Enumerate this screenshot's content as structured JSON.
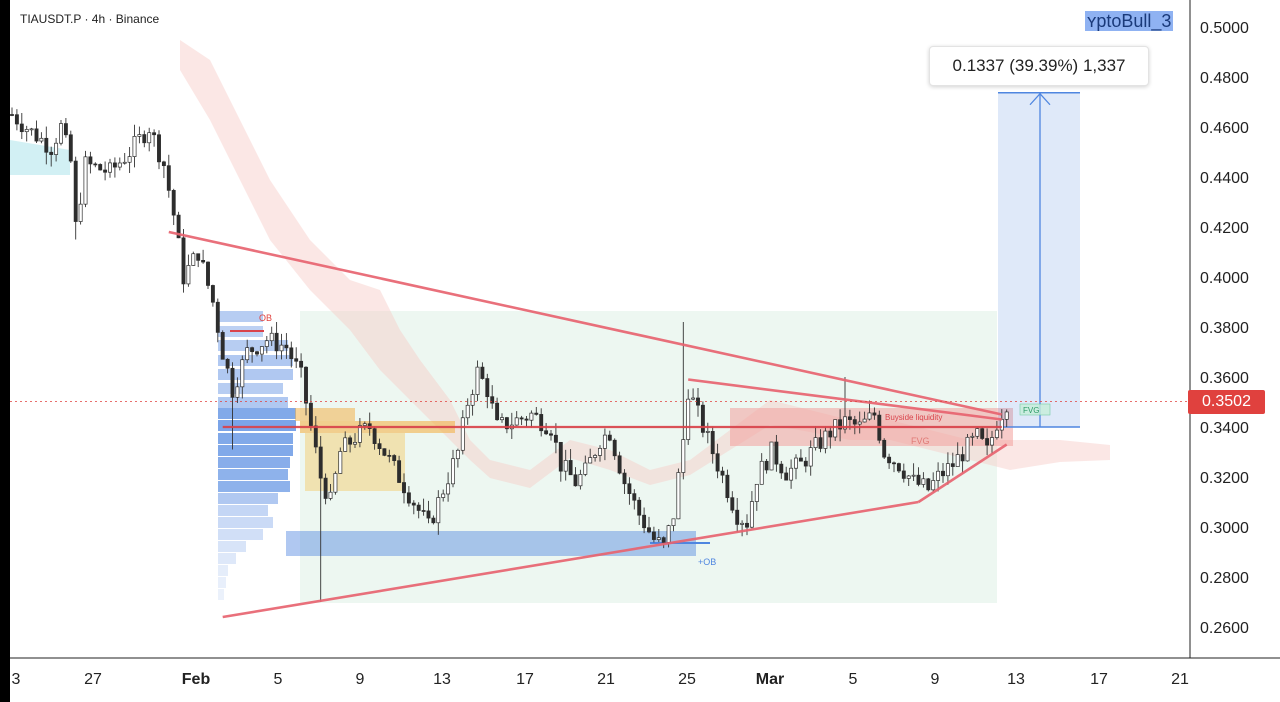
{
  "symbol": "TIAUSDT.P · 4h · Binance",
  "watermark": "ʏptoBull_3",
  "measure_label": "0.1337 (39.39%) 1,337",
  "current_price": "0.3502",
  "colors": {
    "up": "#26a69a",
    "down": "#ef5350",
    "trendline": "#e86470",
    "horizontal": "#d9434b",
    "projection": "#4f86e0",
    "zone_green": "#dff0e6",
    "zone_red": "#f6c9c6",
    "ob": "#4f86e0"
  },
  "annotations": {
    "ob_top": "OB",
    "ob_bottom": "+OB",
    "fvg": "FVG",
    "fvg_small": "FVG",
    "buyside": "Buyside liquidity"
  },
  "chart_data": {
    "type": "candlestick",
    "title": "TIAUSDT.P · 4h · Binance",
    "xlabel": "",
    "ylabel": "",
    "ylim": [
      0.25,
      0.51
    ],
    "grid": false,
    "y_ticks": [
      "0.5000",
      "0.4800",
      "0.4600",
      "0.4400",
      "0.4200",
      "0.4000",
      "0.3800",
      "0.3600",
      "0.3400",
      "0.3200",
      "0.3000",
      "0.2800",
      "0.2600"
    ],
    "x_ticks": [
      "3",
      "27",
      "Feb",
      "5",
      "9",
      "13",
      "17",
      "21",
      "25",
      "Mar",
      "5",
      "9",
      "13",
      "17",
      "21"
    ],
    "price_path": [
      [
        0,
        0.465
      ],
      [
        4,
        0.458
      ],
      [
        8,
        0.452
      ],
      [
        10,
        0.46
      ],
      [
        12,
        0.446
      ],
      [
        13,
        0.42
      ],
      [
        15,
        0.445
      ],
      [
        20,
        0.442
      ],
      [
        24,
        0.45
      ],
      [
        28,
        0.46
      ],
      [
        31,
        0.445
      ],
      [
        33,
        0.425
      ],
      [
        35,
        0.4
      ],
      [
        38,
        0.41
      ],
      [
        41,
        0.39
      ],
      [
        43,
        0.37
      ],
      [
        45,
        0.355
      ],
      [
        48,
        0.37
      ],
      [
        52,
        0.375
      ],
      [
        56,
        0.372
      ],
      [
        59,
        0.36
      ],
      [
        61,
        0.34
      ],
      [
        63,
        0.32
      ],
      [
        65,
        0.31
      ],
      [
        67,
        0.33
      ],
      [
        70,
        0.336
      ],
      [
        73,
        0.34
      ],
      [
        76,
        0.33
      ],
      [
        79,
        0.32
      ],
      [
        82,
        0.31
      ],
      [
        85,
        0.3
      ],
      [
        88,
        0.315
      ],
      [
        91,
        0.33
      ],
      [
        93,
        0.35
      ],
      [
        95,
        0.362
      ],
      [
        97,
        0.355
      ],
      [
        99,
        0.34
      ],
      [
        102,
        0.342
      ],
      [
        106,
        0.345
      ],
      [
        110,
        0.34
      ],
      [
        112,
        0.325
      ],
      [
        115,
        0.318
      ],
      [
        117,
        0.322
      ],
      [
        120,
        0.335
      ],
      [
        122,
        0.338
      ],
      [
        125,
        0.318
      ],
      [
        128,
        0.305
      ],
      [
        131,
        0.295
      ],
      [
        133,
        0.292
      ],
      [
        135,
        0.305
      ],
      [
        137,
        0.335
      ],
      [
        138,
        0.355
      ],
      [
        140,
        0.345
      ],
      [
        142,
        0.335
      ],
      [
        145,
        0.32
      ],
      [
        148,
        0.305
      ],
      [
        150,
        0.302
      ],
      [
        152,
        0.32
      ],
      [
        155,
        0.33
      ],
      [
        158,
        0.322
      ],
      [
        161,
        0.325
      ],
      [
        164,
        0.332
      ],
      [
        167,
        0.338
      ],
      [
        170,
        0.342
      ],
      [
        173,
        0.34
      ],
      [
        176,
        0.345
      ],
      [
        178,
        0.33
      ],
      [
        181,
        0.325
      ],
      [
        184,
        0.318
      ],
      [
        187,
        0.315
      ],
      [
        189,
        0.32
      ],
      [
        192,
        0.325
      ],
      [
        195,
        0.332
      ],
      [
        197,
        0.336
      ],
      [
        199,
        0.33
      ],
      [
        201,
        0.342
      ],
      [
        203,
        0.35
      ]
    ],
    "wicks_extreme": [
      {
        "i": 13,
        "low": 0.415
      },
      {
        "i": 45,
        "low": 0.331
      },
      {
        "i": 63,
        "low": 0.27
      },
      {
        "i": 137,
        "high": 0.382
      },
      {
        "i": 170,
        "high": 0.36
      }
    ],
    "trendlines": [
      {
        "name": "upper",
        "from": [
          32,
          0.418
        ],
        "to": [
          202,
          0.345
        ]
      },
      {
        "name": "lower",
        "from": [
          43,
          0.264
        ],
        "to": [
          185,
          0.31
        ]
      },
      {
        "name": "lower2",
        "from": [
          185,
          0.31
        ],
        "to": [
          203,
          0.333
        ]
      },
      {
        "name": "inner",
        "from": [
          138,
          0.359
        ],
        "to": [
          202,
          0.343
        ]
      },
      {
        "name": "horizontal",
        "from": [
          43,
          0.34
        ],
        "to": [
          202,
          0.34
        ]
      }
    ],
    "projection": {
      "from_price": 0.34,
      "to_price": 0.4737,
      "x_start": 203,
      "x_end": 216
    },
    "last_price": 0.3502
  }
}
